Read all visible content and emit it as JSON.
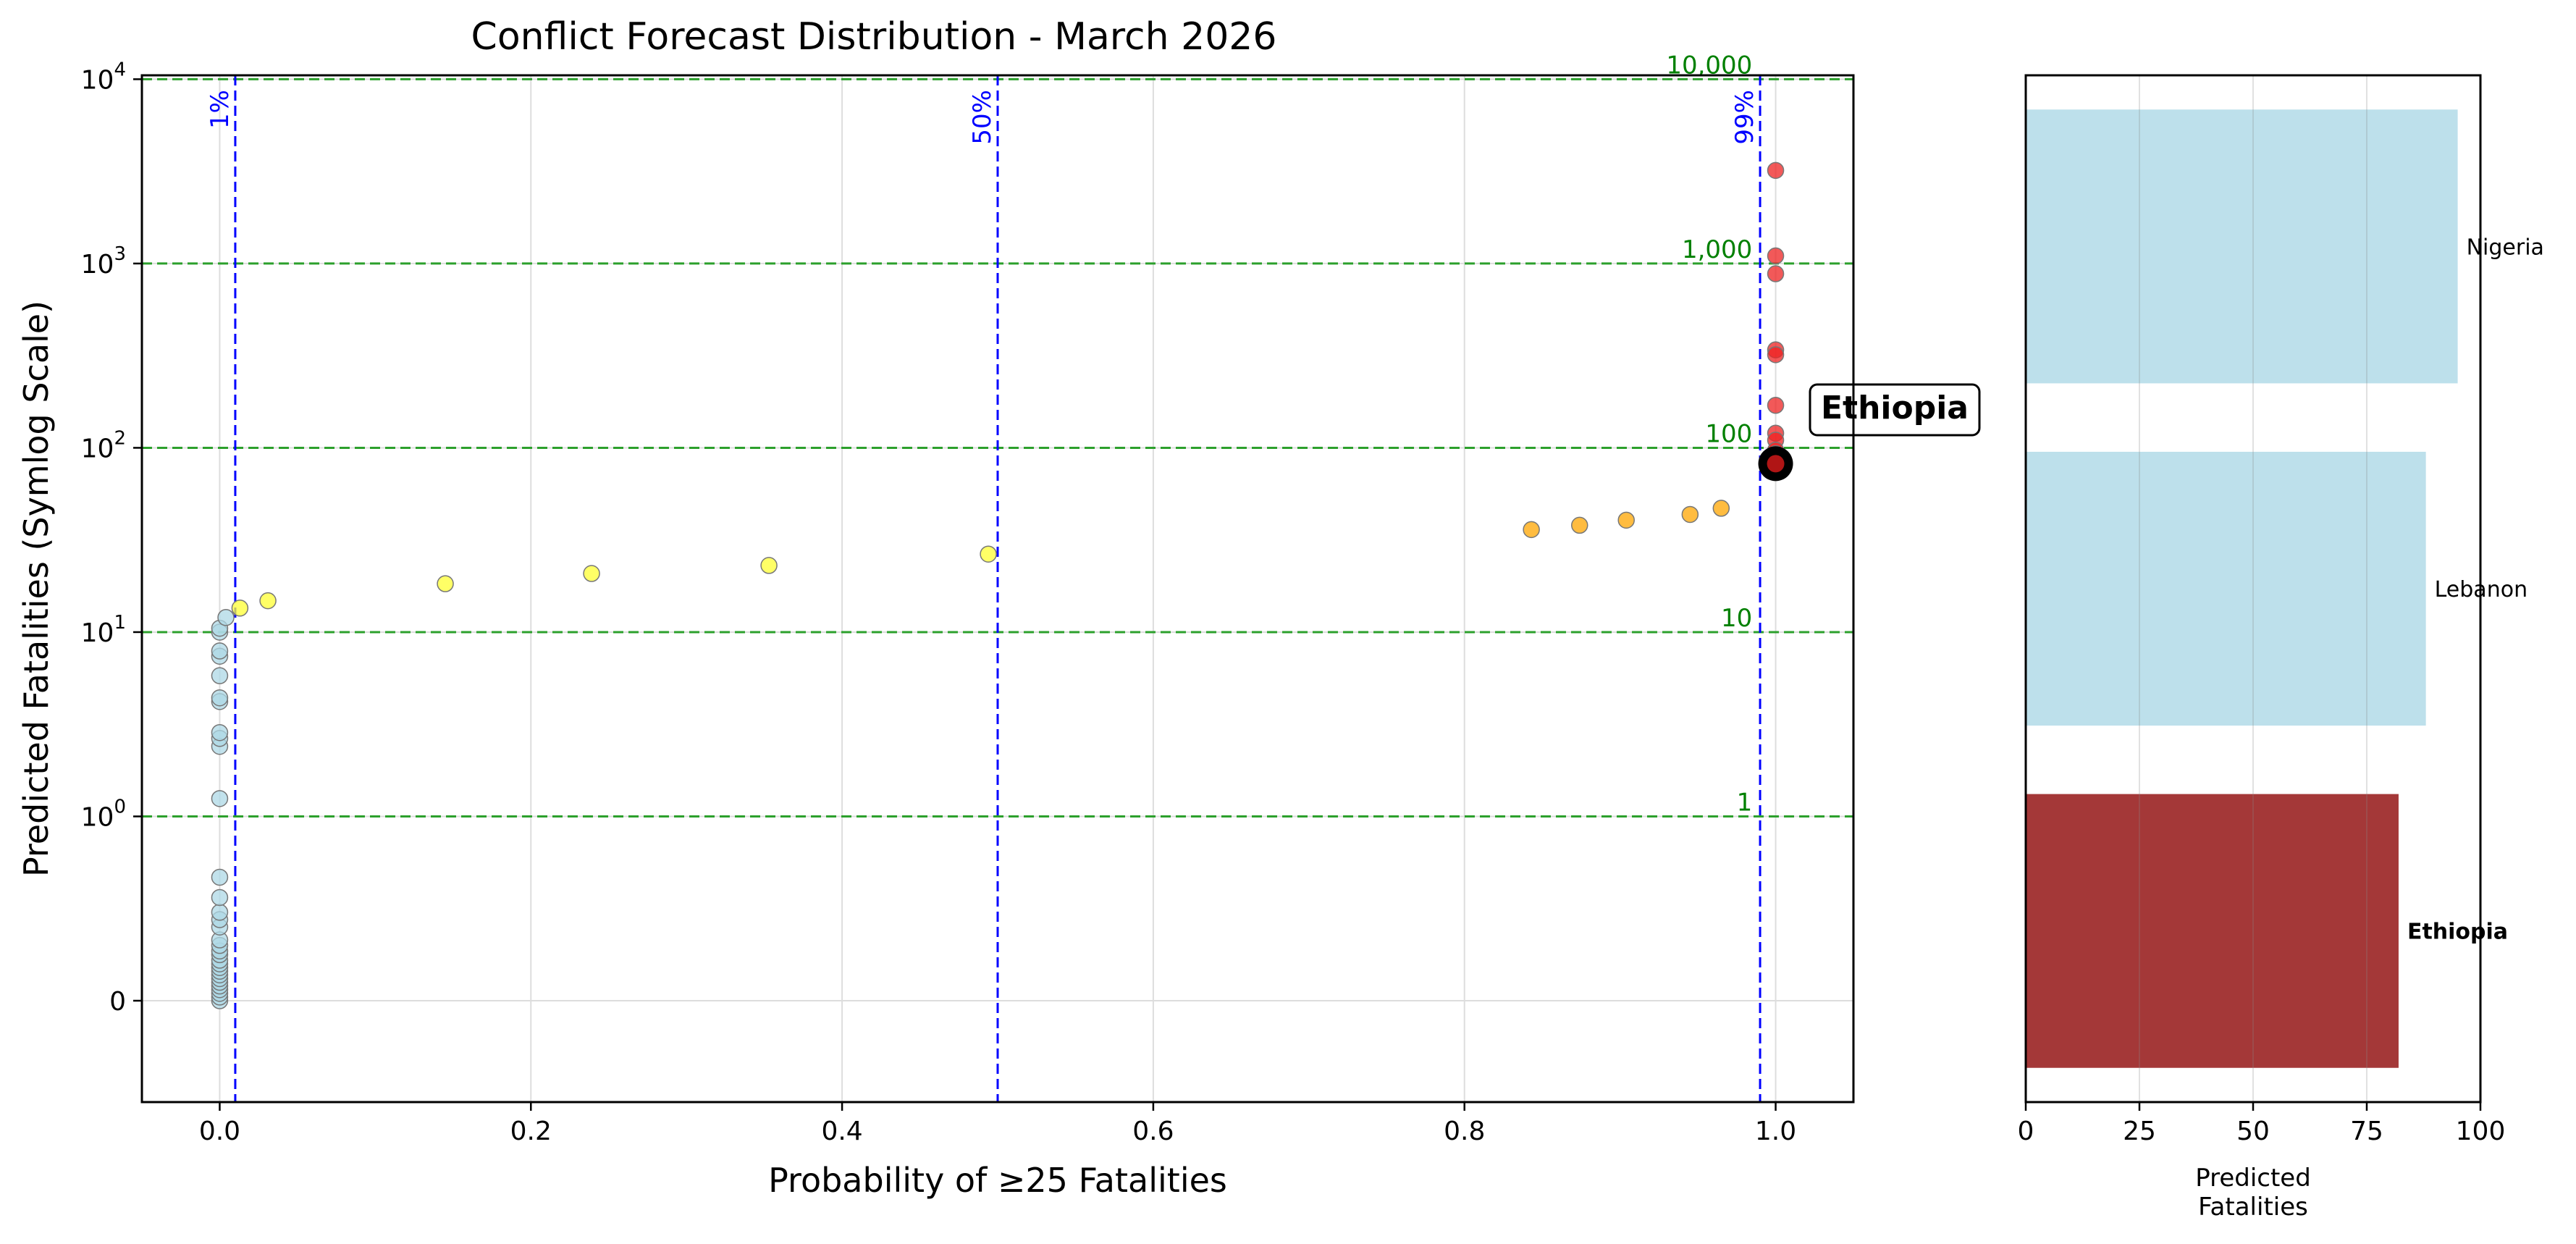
{
  "title": "Conflict Forecast Distribution - March 2026",
  "chart_data": [
    {
      "type": "scatter",
      "title": "Conflict Forecast Distribution - March 2026",
      "xlabel": "Probability of ≥25 Fatalities",
      "ylabel": "Predicted Fatalities (Symlog Scale)",
      "xlim": [
        -0.05,
        1.05
      ],
      "ylim": [
        -0.55,
        10500
      ],
      "yscale": "symlog",
      "grid": true,
      "xticks": [
        0.0,
        0.2,
        0.4,
        0.6,
        0.8,
        1.0
      ],
      "xtick_labels": [
        "0.0",
        "0.2",
        "0.4",
        "0.6",
        "0.8",
        "1.0"
      ],
      "yticks": [
        0,
        1,
        10,
        100,
        1000,
        10000
      ],
      "ytick_labels": [
        {
          "base": "0",
          "exp": ""
        },
        {
          "base": "10",
          "exp": "0"
        },
        {
          "base": "10",
          "exp": "1"
        },
        {
          "base": "10",
          "exp": "2"
        },
        {
          "base": "10",
          "exp": "3"
        },
        {
          "base": "10",
          "exp": "4"
        }
      ],
      "hlines": [
        {
          "y": 1,
          "label": "1"
        },
        {
          "y": 10,
          "label": "10"
        },
        {
          "y": 100,
          "label": "100"
        },
        {
          "y": 1000,
          "label": "1,000"
        },
        {
          "y": 10000,
          "label": "10,000"
        }
      ],
      "vlines": [
        {
          "x": 0.01,
          "label": "1%"
        },
        {
          "x": 0.5,
          "label": "50%"
        },
        {
          "x": 0.99,
          "label": "99%"
        }
      ],
      "colors": {
        "low": "#add8e6",
        "mid": "#ffff33",
        "high": "#ffa500",
        "very_high": "#ee2222",
        "highlight": "#b01515",
        "hline": "#2ca02c",
        "hline_label": "#008000",
        "vline": "#0000ff"
      },
      "series": [
        {
          "name": "low",
          "points": [
            [
              0.0,
              0.0
            ],
            [
              0.0,
              0.02
            ],
            [
              0.0,
              0.04
            ],
            [
              0.0,
              0.06
            ],
            [
              0.0,
              0.08
            ],
            [
              0.0,
              0.1
            ],
            [
              0.0,
              0.12
            ],
            [
              0.0,
              0.14
            ],
            [
              0.0,
              0.16
            ],
            [
              0.0,
              0.18
            ],
            [
              0.0,
              0.2
            ],
            [
              0.0,
              0.22
            ],
            [
              0.0,
              0.25
            ],
            [
              0.0,
              0.27
            ],
            [
              0.0,
              0.3
            ],
            [
              0.0,
              0.33
            ],
            [
              0.0,
              0.4
            ],
            [
              0.0,
              0.44
            ],
            [
              0.0,
              0.48
            ],
            [
              0.0,
              0.56
            ],
            [
              0.0,
              0.67
            ],
            [
              0.0,
              1.25
            ],
            [
              0.0,
              2.4
            ],
            [
              0.0,
              2.65
            ],
            [
              0.0,
              2.85
            ],
            [
              0.0,
              4.2
            ],
            [
              0.0,
              4.4
            ],
            [
              0.0,
              5.8
            ],
            [
              0.0,
              7.4
            ],
            [
              0.0,
              7.9
            ],
            [
              0.0,
              10.0
            ],
            [
              0.0,
              10.5
            ],
            [
              0.004,
              12.0
            ]
          ]
        },
        {
          "name": "mid",
          "points": [
            [
              0.013,
              13.5
            ],
            [
              0.031,
              14.8
            ],
            [
              0.145,
              18.3
            ],
            [
              0.239,
              20.8
            ],
            [
              0.353,
              23.0
            ],
            [
              0.494,
              26.5
            ]
          ]
        },
        {
          "name": "high",
          "points": [
            [
              0.843,
              36.0
            ],
            [
              0.874,
              38.0
            ],
            [
              0.904,
              40.5
            ],
            [
              0.945,
              43.5
            ],
            [
              0.965,
              47.0
            ]
          ]
        },
        {
          "name": "very_high",
          "points": [
            [
              1.0,
              3200
            ],
            [
              1.0,
              1100
            ],
            [
              1.0,
              880
            ],
            [
              1.0,
              340
            ],
            [
              1.0,
              320
            ],
            [
              1.0,
              170
            ],
            [
              1.0,
              120
            ],
            [
              1.0,
              110
            ],
            [
              1.0,
              97
            ],
            [
              1.0,
              93
            ],
            [
              1.0,
              90
            ]
          ]
        }
      ],
      "highlight": {
        "x": 1.0,
        "y": 82,
        "label": "Ethiopia"
      }
    },
    {
      "type": "bar",
      "orientation": "horizontal",
      "categories": [
        "Nigeria",
        "Lebanon",
        "Ethiopia"
      ],
      "values": [
        95,
        88,
        82
      ],
      "bar_colors": [
        "#add8e6",
        "#add8e6",
        "#8b0000"
      ],
      "highlight": "Ethiopia",
      "xlim": [
        0,
        100
      ],
      "xticks": [
        0,
        25,
        50,
        75,
        100
      ],
      "xtick_labels": [
        "0",
        "25",
        "50",
        "75",
        "100"
      ],
      "xlabel": "Predicted\nFatalities",
      "grid": true
    }
  ]
}
